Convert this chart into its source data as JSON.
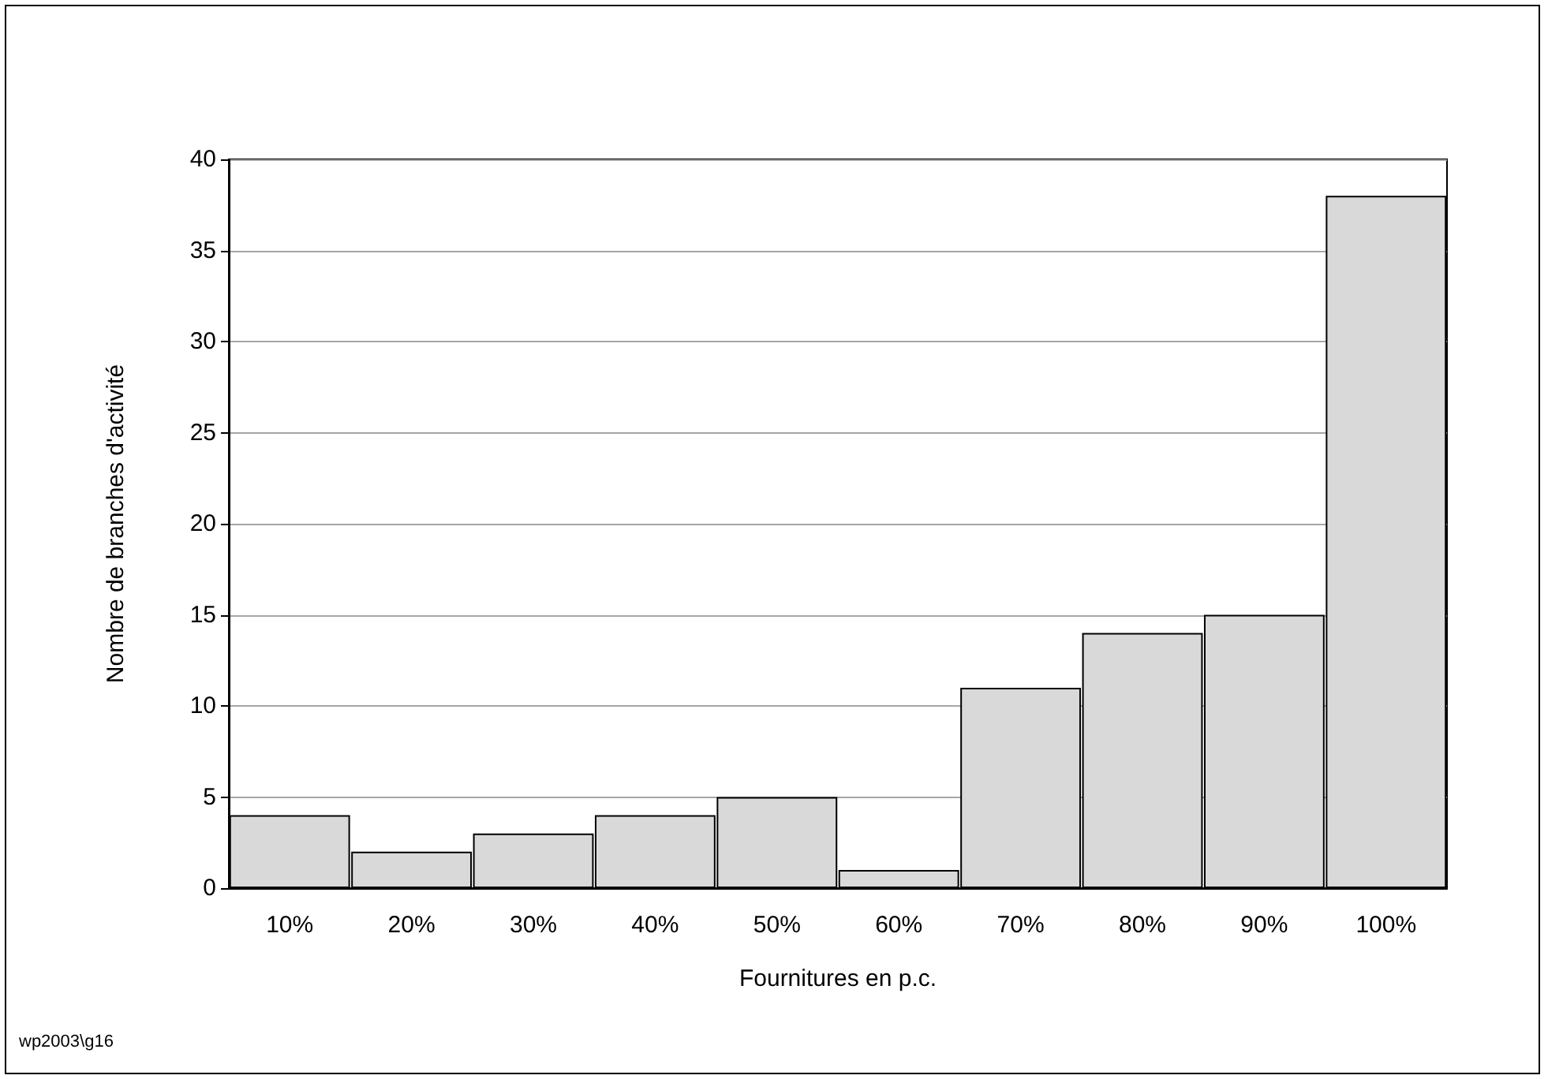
{
  "chart_data": {
    "type": "bar",
    "xlabel": "Fournitures en p.c.",
    "ylabel": "Nombre de branches d'activité",
    "categories": [
      "10%",
      "20%",
      "30%",
      "40%",
      "50%",
      "60%",
      "70%",
      "80%",
      "90%",
      "100%"
    ],
    "values": [
      4,
      2,
      3,
      4,
      5,
      1,
      11,
      14,
      15,
      38
    ],
    "color": "#d9d9d9",
    "ylim": [
      0,
      40
    ],
    "yticks": [
      0,
      5,
      10,
      15,
      20,
      25,
      30,
      35,
      40
    ],
    "grid": "y",
    "annotations": [
      "wp2003\\g16"
    ]
  }
}
